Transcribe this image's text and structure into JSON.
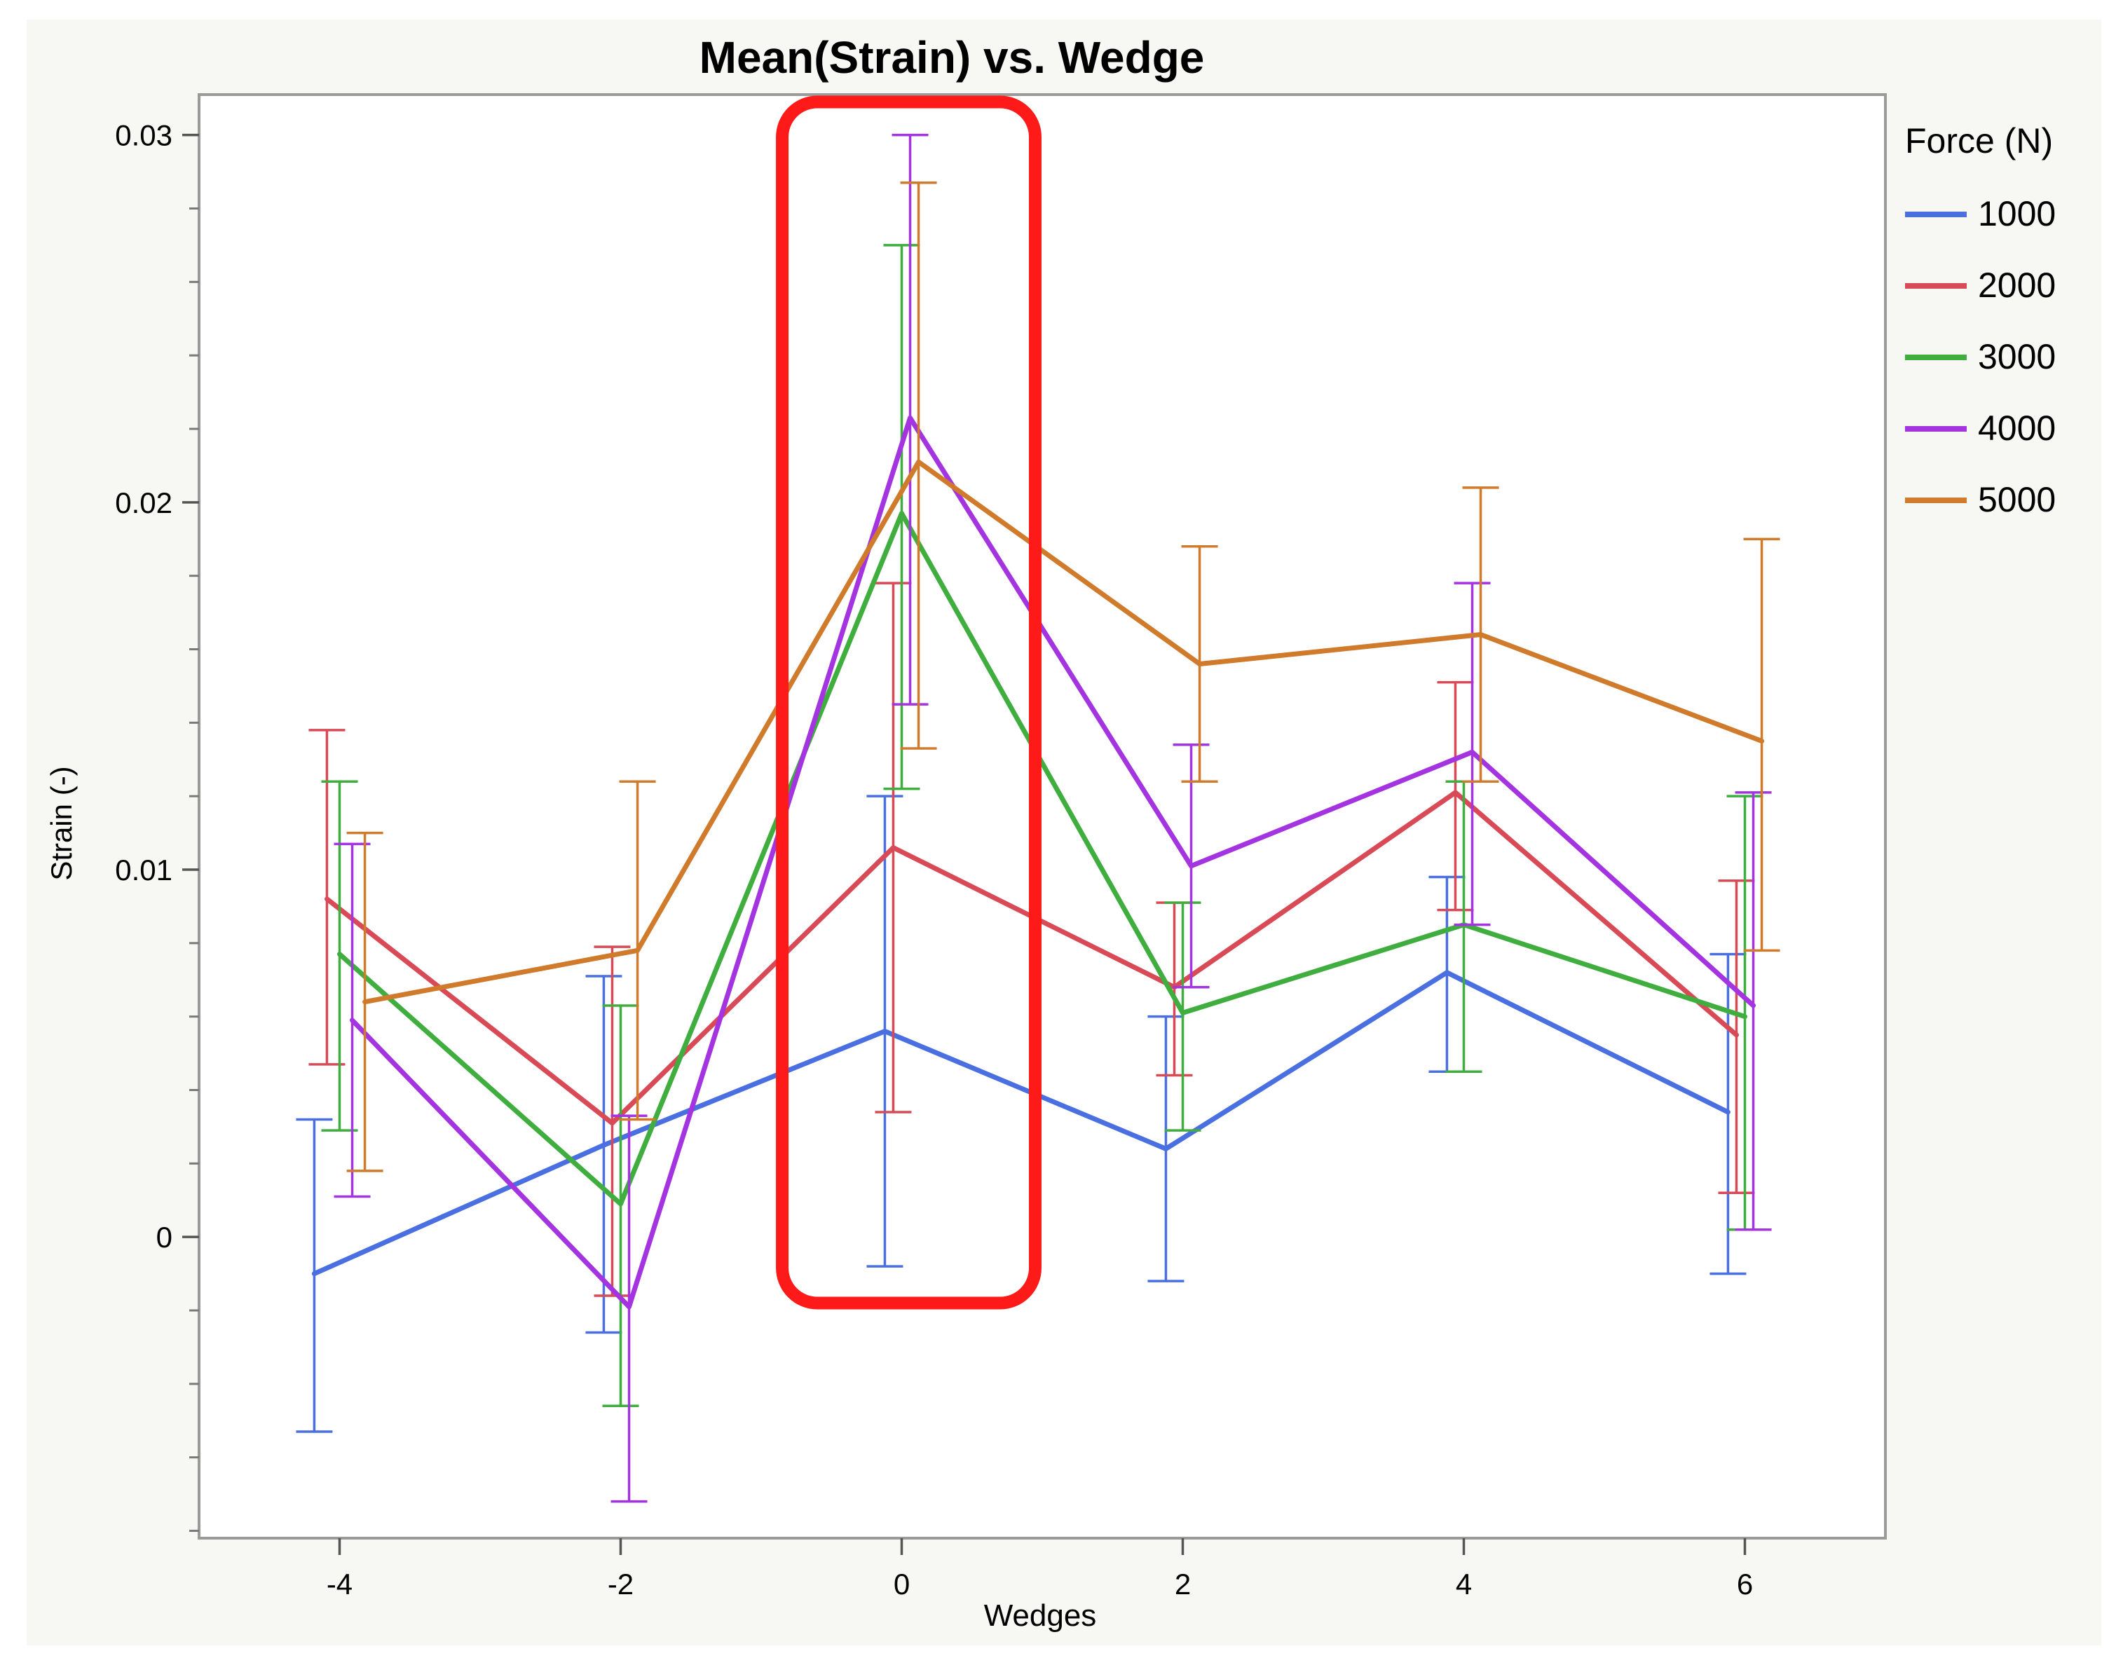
{
  "chart_data": {
    "type": "line",
    "title": "Mean(Strain) vs. Wedge",
    "xlabel": "Wedges",
    "ylabel": "Strain (-)",
    "xlim": [
      -5.0,
      7.0
    ],
    "ylim": [
      -0.0082,
      0.0311
    ],
    "x_ticks": [
      -4,
      -2,
      0,
      2,
      4,
      6
    ],
    "x_tick_labels": [
      "-4",
      "-2",
      "0",
      "2",
      "4",
      "6"
    ],
    "y_ticks": [
      0,
      0.01,
      0.02,
      0.03
    ],
    "y_tick_labels": [
      "0",
      "0.01",
      "0.02",
      "0.03"
    ],
    "legend": {
      "title": "Force (N)",
      "position": "right"
    },
    "error_bars": true,
    "highlight": {
      "description": "red rounded rectangle around Wedge = 0",
      "x_range": [
        -0.85,
        0.95
      ],
      "y_range": [
        -0.0018,
        0.0309
      ],
      "color": "#ff1a1a"
    },
    "series": [
      {
        "name": "1000",
        "color": "#4a6fe0",
        "x": [
          -4.18,
          -2.12,
          -0.12,
          1.88,
          3.88,
          5.88
        ],
        "y": [
          -0.001,
          0.0025,
          0.0056,
          0.0024,
          0.0072,
          0.0034
        ],
        "err_low": [
          -0.0053,
          -0.0026,
          -0.0008,
          -0.0012,
          0.0045,
          -0.001
        ],
        "err_high": [
          0.0032,
          0.0071,
          0.012,
          0.006,
          0.0098,
          0.0077
        ]
      },
      {
        "name": "2000",
        "color": "#d94a57",
        "x": [
          -4.09,
          -2.06,
          -0.06,
          1.94,
          3.94,
          5.94
        ],
        "y": [
          0.0092,
          0.0031,
          0.0106,
          0.0068,
          0.0121,
          0.0055
        ],
        "err_low": [
          0.0047,
          -0.0016,
          0.0034,
          0.0044,
          0.0089,
          0.0012
        ],
        "err_high": [
          0.0138,
          0.0079,
          0.0178,
          0.0091,
          0.0151,
          0.0097
        ]
      },
      {
        "name": "3000",
        "color": "#3fae3f",
        "x": [
          -4.0,
          -2.0,
          0.0,
          2.0,
          4.0,
          6.0
        ],
        "y": [
          0.0077,
          0.0009,
          0.0197,
          0.0061,
          0.0085,
          0.006
        ],
        "err_low": [
          0.0029,
          -0.0046,
          0.0122,
          0.0029,
          0.0045,
          0.0002
        ],
        "err_high": [
          0.0124,
          0.0063,
          0.027,
          0.0091,
          0.0124,
          0.012
        ]
      },
      {
        "name": "4000",
        "color": "#a433e0",
        "x": [
          -3.91,
          -1.94,
          0.06,
          2.06,
          4.06,
          6.06
        ],
        "y": [
          0.0059,
          -0.0019,
          0.0223,
          0.0101,
          0.0132,
          0.0063
        ],
        "err_low": [
          0.0011,
          -0.0072,
          0.0145,
          0.0068,
          0.0085,
          0.0002
        ],
        "err_high": [
          0.0107,
          0.0033,
          0.03,
          0.0134,
          0.0178,
          0.0121
        ]
      },
      {
        "name": "5000",
        "color": "#d07a2c",
        "x": [
          -3.82,
          -1.88,
          0.12,
          2.12,
          4.12,
          6.12
        ],
        "y": [
          0.0064,
          0.0078,
          0.0211,
          0.0156,
          0.0164,
          0.0135
        ],
        "err_low": [
          0.0018,
          0.0032,
          0.0133,
          0.0124,
          0.0124,
          0.0078
        ],
        "err_high": [
          0.011,
          0.0124,
          0.0287,
          0.0188,
          0.0204,
          0.019
        ]
      }
    ]
  }
}
